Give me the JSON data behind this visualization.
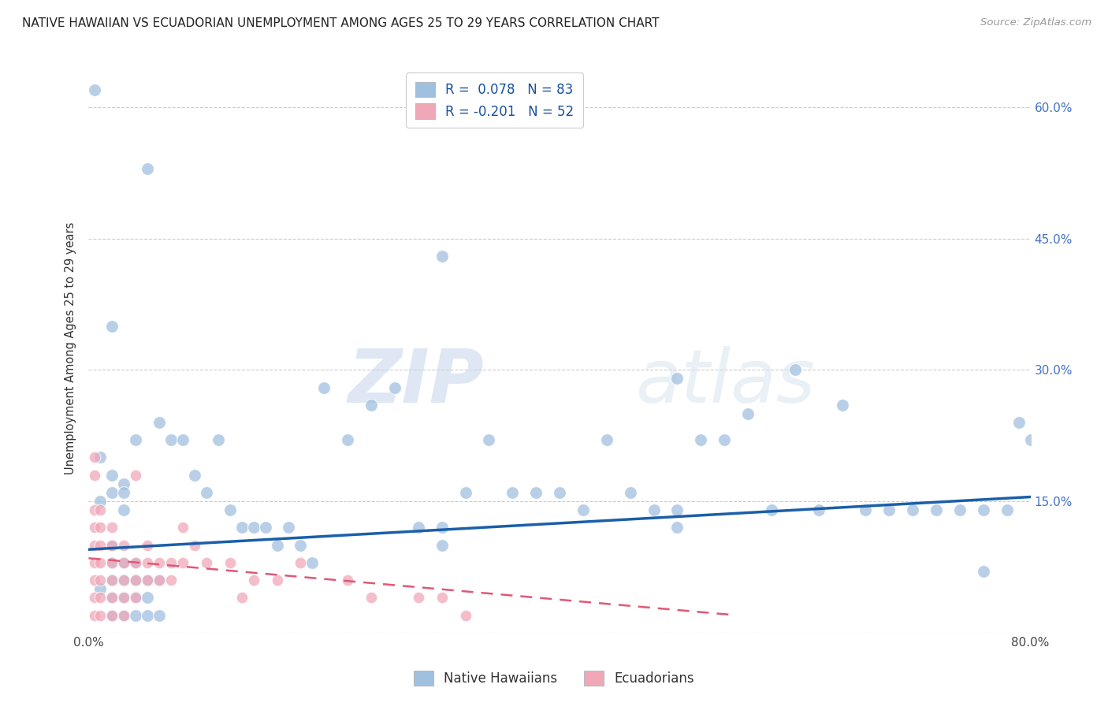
{
  "title": "NATIVE HAWAIIAN VS ECUADORIAN UNEMPLOYMENT AMONG AGES 25 TO 29 YEARS CORRELATION CHART",
  "source": "Source: ZipAtlas.com",
  "ylabel": "Unemployment Among Ages 25 to 29 years",
  "xlim": [
    0.0,
    0.8
  ],
  "ylim": [
    0.0,
    0.65
  ],
  "nh_color": "#a0c0e0",
  "ec_color": "#f0a8b8",
  "nh_line_color": "#1a5fa8",
  "ec_line_color": "#e05878",
  "background_color": "#ffffff",
  "grid_color": "#cccccc",
  "watermark_color": "#d8e4f0",
  "nh_scatter": [
    [
      0.005,
      0.62
    ],
    [
      0.05,
      0.53
    ],
    [
      0.02,
      0.35
    ],
    [
      0.01,
      0.2
    ],
    [
      0.02,
      0.18
    ],
    [
      0.03,
      0.17
    ],
    [
      0.02,
      0.16
    ],
    [
      0.03,
      0.16
    ],
    [
      0.01,
      0.15
    ],
    [
      0.04,
      0.22
    ],
    [
      0.03,
      0.14
    ],
    [
      0.02,
      0.1
    ],
    [
      0.02,
      0.08
    ],
    [
      0.03,
      0.08
    ],
    [
      0.04,
      0.08
    ],
    [
      0.02,
      0.06
    ],
    [
      0.03,
      0.06
    ],
    [
      0.04,
      0.06
    ],
    [
      0.05,
      0.06
    ],
    [
      0.06,
      0.06
    ],
    [
      0.01,
      0.05
    ],
    [
      0.02,
      0.04
    ],
    [
      0.03,
      0.04
    ],
    [
      0.04,
      0.04
    ],
    [
      0.05,
      0.04
    ],
    [
      0.02,
      0.02
    ],
    [
      0.03,
      0.02
    ],
    [
      0.04,
      0.02
    ],
    [
      0.05,
      0.02
    ],
    [
      0.06,
      0.02
    ],
    [
      0.06,
      0.24
    ],
    [
      0.07,
      0.22
    ],
    [
      0.08,
      0.22
    ],
    [
      0.09,
      0.18
    ],
    [
      0.1,
      0.16
    ],
    [
      0.11,
      0.22
    ],
    [
      0.12,
      0.14
    ],
    [
      0.13,
      0.12
    ],
    [
      0.14,
      0.12
    ],
    [
      0.15,
      0.12
    ],
    [
      0.16,
      0.1
    ],
    [
      0.17,
      0.12
    ],
    [
      0.18,
      0.1
    ],
    [
      0.19,
      0.08
    ],
    [
      0.2,
      0.28
    ],
    [
      0.22,
      0.22
    ],
    [
      0.24,
      0.26
    ],
    [
      0.26,
      0.28
    ],
    [
      0.28,
      0.12
    ],
    [
      0.3,
      0.43
    ],
    [
      0.3,
      0.12
    ],
    [
      0.3,
      0.1
    ],
    [
      0.32,
      0.16
    ],
    [
      0.34,
      0.22
    ],
    [
      0.36,
      0.16
    ],
    [
      0.38,
      0.16
    ],
    [
      0.4,
      0.16
    ],
    [
      0.42,
      0.14
    ],
    [
      0.44,
      0.22
    ],
    [
      0.46,
      0.16
    ],
    [
      0.48,
      0.14
    ],
    [
      0.5,
      0.14
    ],
    [
      0.5,
      0.12
    ],
    [
      0.5,
      0.29
    ],
    [
      0.52,
      0.22
    ],
    [
      0.54,
      0.22
    ],
    [
      0.56,
      0.25
    ],
    [
      0.58,
      0.14
    ],
    [
      0.6,
      0.3
    ],
    [
      0.62,
      0.14
    ],
    [
      0.64,
      0.26
    ],
    [
      0.66,
      0.14
    ],
    [
      0.68,
      0.14
    ],
    [
      0.7,
      0.14
    ],
    [
      0.72,
      0.14
    ],
    [
      0.74,
      0.14
    ],
    [
      0.76,
      0.14
    ],
    [
      0.76,
      0.07
    ],
    [
      0.78,
      0.14
    ],
    [
      0.79,
      0.24
    ],
    [
      0.8,
      0.22
    ]
  ],
  "ec_scatter": [
    [
      0.005,
      0.2
    ],
    [
      0.005,
      0.18
    ],
    [
      0.005,
      0.14
    ],
    [
      0.005,
      0.12
    ],
    [
      0.005,
      0.1
    ],
    [
      0.005,
      0.08
    ],
    [
      0.005,
      0.06
    ],
    [
      0.005,
      0.04
    ],
    [
      0.005,
      0.02
    ],
    [
      0.01,
      0.14
    ],
    [
      0.01,
      0.12
    ],
    [
      0.01,
      0.1
    ],
    [
      0.01,
      0.08
    ],
    [
      0.01,
      0.06
    ],
    [
      0.01,
      0.04
    ],
    [
      0.01,
      0.02
    ],
    [
      0.02,
      0.12
    ],
    [
      0.02,
      0.1
    ],
    [
      0.02,
      0.08
    ],
    [
      0.02,
      0.06
    ],
    [
      0.02,
      0.04
    ],
    [
      0.02,
      0.02
    ],
    [
      0.03,
      0.1
    ],
    [
      0.03,
      0.08
    ],
    [
      0.03,
      0.06
    ],
    [
      0.03,
      0.04
    ],
    [
      0.03,
      0.02
    ],
    [
      0.04,
      0.18
    ],
    [
      0.04,
      0.08
    ],
    [
      0.04,
      0.06
    ],
    [
      0.04,
      0.04
    ],
    [
      0.05,
      0.1
    ],
    [
      0.05,
      0.08
    ],
    [
      0.05,
      0.06
    ],
    [
      0.06,
      0.08
    ],
    [
      0.06,
      0.06
    ],
    [
      0.07,
      0.08
    ],
    [
      0.07,
      0.06
    ],
    [
      0.08,
      0.12
    ],
    [
      0.08,
      0.08
    ],
    [
      0.09,
      0.1
    ],
    [
      0.1,
      0.08
    ],
    [
      0.12,
      0.08
    ],
    [
      0.13,
      0.04
    ],
    [
      0.14,
      0.06
    ],
    [
      0.16,
      0.06
    ],
    [
      0.18,
      0.08
    ],
    [
      0.22,
      0.06
    ],
    [
      0.24,
      0.04
    ],
    [
      0.28,
      0.04
    ],
    [
      0.3,
      0.04
    ],
    [
      0.32,
      0.02
    ]
  ],
  "nh_line_x": [
    0.0,
    0.8
  ],
  "nh_line_y": [
    0.095,
    0.155
  ],
  "ec_line_x": [
    0.0,
    0.55
  ],
  "ec_line_y": [
    0.085,
    0.02
  ]
}
